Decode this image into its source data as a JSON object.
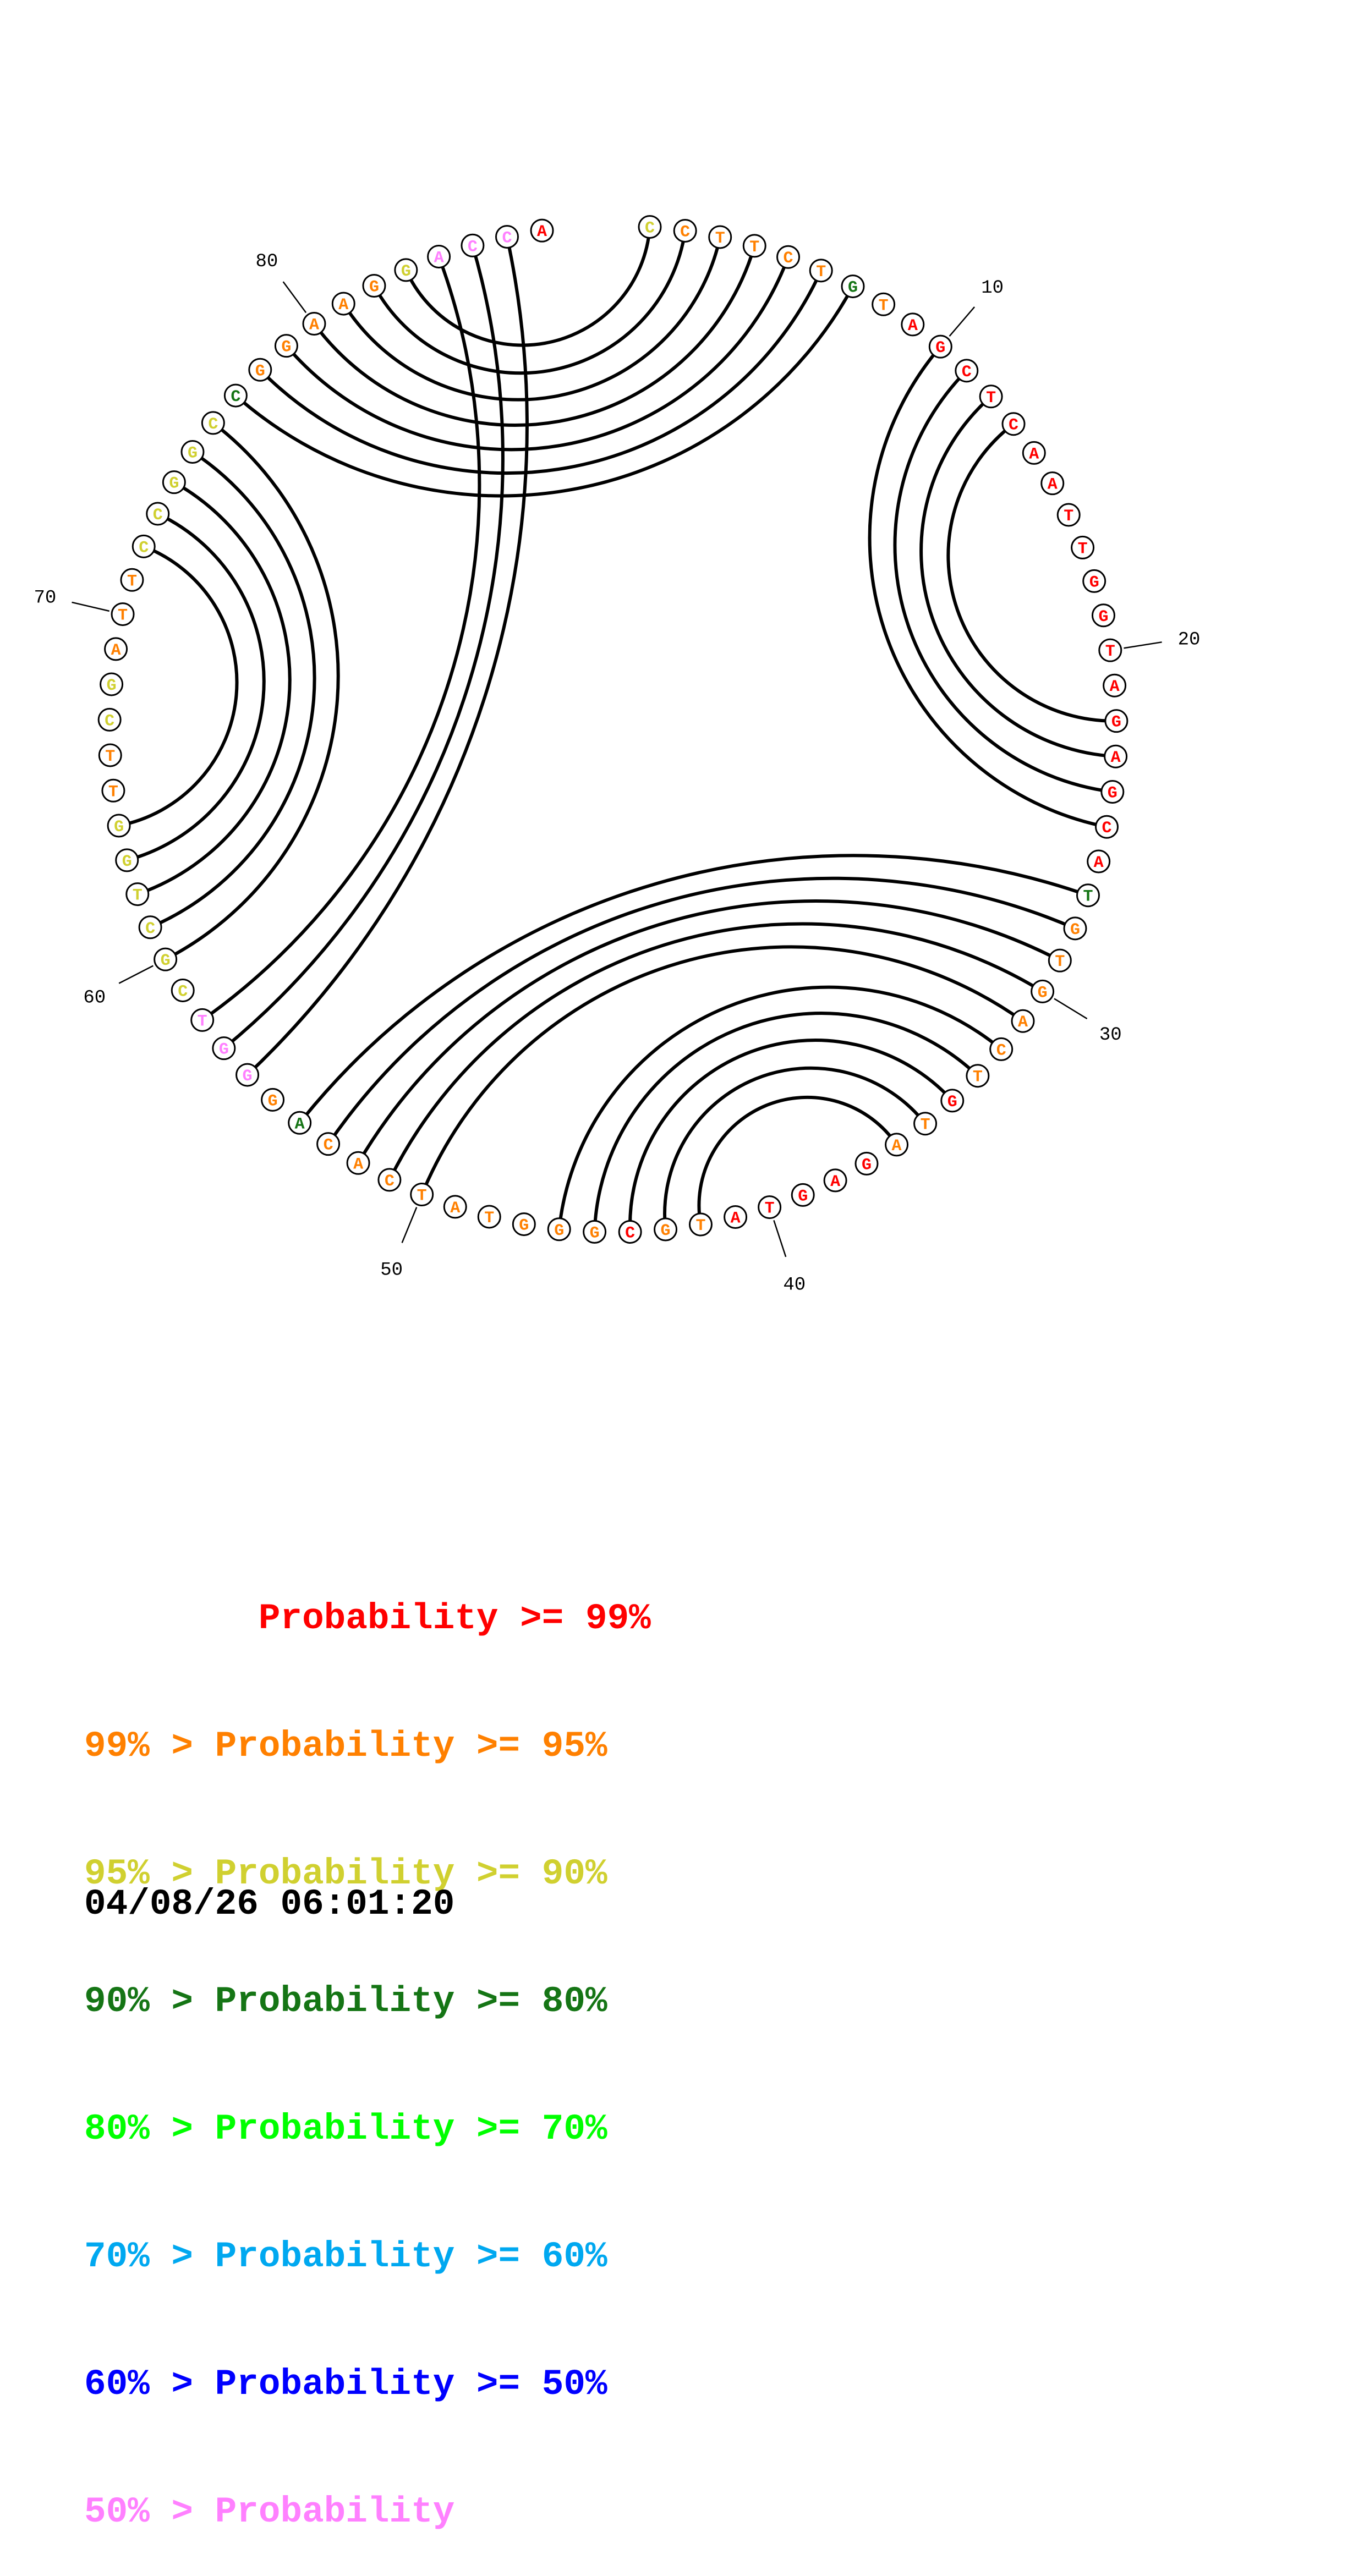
{
  "chart_data": {
    "type": "circle-plot",
    "title": "",
    "sequence": [
      "C",
      "C",
      "T",
      "T",
      "C",
      "T",
      "G",
      "T",
      "A",
      "G",
      "C",
      "T",
      "C",
      "A",
      "A",
      "T",
      "T",
      "G",
      "G",
      "T",
      "A",
      "G",
      "A",
      "G",
      "C",
      "A",
      "T",
      "G",
      "T",
      "G",
      "A",
      "C",
      "T",
      "G",
      "T",
      "A",
      "G",
      "A",
      "G",
      "T",
      "A",
      "T",
      "G",
      "C",
      "G",
      "G",
      "G",
      "T",
      "A",
      "T",
      "C",
      "A",
      "C",
      "A",
      "G",
      "G",
      "G",
      "T",
      "C",
      "G",
      "C",
      "T",
      "G",
      "G",
      "T",
      "T",
      "C",
      "G",
      "A",
      "T",
      "T",
      "C",
      "C",
      "G",
      "G",
      "C",
      "C",
      "G",
      "G",
      "A",
      "A",
      "G",
      "G",
      "A",
      "C",
      "C",
      "A"
    ],
    "probability_bin": [
      2,
      1,
      1,
      1,
      1,
      1,
      3,
      1,
      0,
      0,
      0,
      0,
      0,
      0,
      0,
      0,
      0,
      0,
      0,
      0,
      0,
      0,
      0,
      0,
      0,
      0,
      3,
      1,
      1,
      1,
      1,
      1,
      1,
      0,
      1,
      1,
      0,
      0,
      0,
      0,
      0,
      1,
      1,
      0,
      1,
      1,
      1,
      1,
      1,
      1,
      1,
      1,
      1,
      3,
      1,
      7,
      7,
      7,
      2,
      2,
      2,
      2,
      2,
      2,
      1,
      1,
      2,
      2,
      1,
      1,
      1,
      2,
      2,
      2,
      2,
      2,
      3,
      1,
      1,
      1,
      1,
      1,
      2,
      7,
      7,
      7,
      0
    ],
    "pairs": [
      [
        1,
        83
      ],
      [
        2,
        82
      ],
      [
        3,
        81
      ],
      [
        4,
        80
      ],
      [
        5,
        79
      ],
      [
        6,
        78
      ],
      [
        7,
        77
      ],
      [
        10,
        25
      ],
      [
        11,
        24
      ],
      [
        12,
        23
      ],
      [
        13,
        22
      ],
      [
        27,
        54
      ],
      [
        28,
        53
      ],
      [
        29,
        52
      ],
      [
        30,
        51
      ],
      [
        31,
        50
      ],
      [
        32,
        46
      ],
      [
        33,
        45
      ],
      [
        34,
        44
      ],
      [
        35,
        43
      ],
      [
        36,
        42
      ],
      [
        56,
        86
      ],
      [
        57,
        85
      ],
      [
        58,
        84
      ],
      [
        60,
        76
      ],
      [
        61,
        75
      ],
      [
        62,
        74
      ],
      [
        63,
        73
      ],
      [
        64,
        72
      ]
    ],
    "position_labels": [
      "10",
      "20",
      "30",
      "40",
      "50",
      "60",
      "70",
      "80"
    ]
  },
  "legend": {
    "colors": [
      "#ff0000",
      "#ff8000",
      "#d0d030",
      "#157515",
      "#00ff00",
      "#00a8f0",
      "#0000ff",
      "#ff80ff"
    ],
    "rows": [
      {
        "prefix": "        ",
        "label": "Probability",
        "suffix": " >= 99%"
      },
      {
        "prefix": "99% > ",
        "label": "Probability",
        "suffix": " >= 95%"
      },
      {
        "prefix": "95% > ",
        "label": "Probability",
        "suffix": " >= 90%"
      },
      {
        "prefix": "90% > ",
        "label": "Probability",
        "suffix": " >= 80%"
      },
      {
        "prefix": "80% > ",
        "label": "Probability",
        "suffix": " >= 70%"
      },
      {
        "prefix": "70% > ",
        "label": "Probability",
        "suffix": " >= 60%"
      },
      {
        "prefix": "60% > ",
        "label": "Probability",
        "suffix": " >= 50%"
      },
      {
        "prefix": "50% > ",
        "label": "Probability",
        "suffix": ""
      }
    ]
  },
  "timestamp": "04/08/26 06:01:20"
}
